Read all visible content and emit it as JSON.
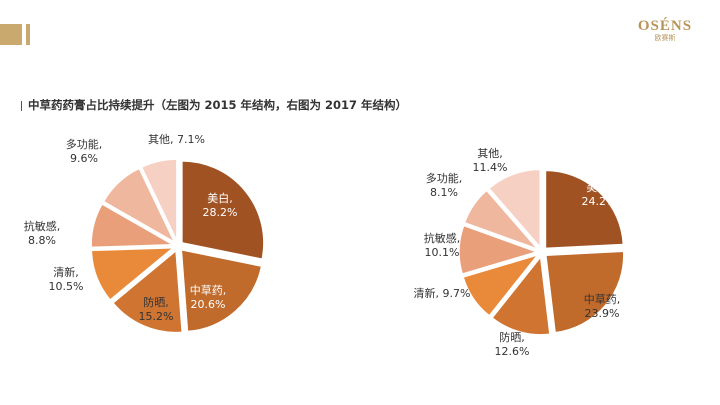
{
  "header": {
    "brand_colors": [
      "#c9a96e",
      "#b8955a"
    ],
    "logo_text": "OSÉNS",
    "logo_subtext": "欧赛斯"
  },
  "title": "中草药药膏占比持续提升（左图为 2015 年结构，右图为 2017 年结构）",
  "chart_data": [
    {
      "type": "pie",
      "title": "",
      "slices": [
        {
          "name": "美白",
          "value": 28.2,
          "label": "美白,",
          "value_label": "28.2%",
          "color": "#a05222",
          "text_color": "#ffffff"
        },
        {
          "name": "中草药",
          "value": 20.6,
          "label": "中草药,",
          "value_label": "20.6%",
          "color": "#c06a2c",
          "text_color": "#ffffff"
        },
        {
          "name": "防晒",
          "value": 15.2,
          "label": "防晒,",
          "value_label": "15.2%",
          "color": "#cf7431",
          "text_color": "#333333"
        },
        {
          "name": "清新",
          "value": 10.5,
          "label": "清新,",
          "value_label": "10.5%",
          "color": "#e98a3b",
          "text_color": "#333333"
        },
        {
          "name": "抗敏感",
          "value": 8.8,
          "label": "抗敏感,",
          "value_label": "8.8%",
          "color": "#e9a07a",
          "text_color": "#333333"
        },
        {
          "name": "多功能",
          "value": 9.6,
          "label": "多功能,",
          "value_label": "9.6%",
          "color": "#efb79d",
          "text_color": "#333333"
        },
        {
          "name": "其他",
          "value": 7.1,
          "label": "其他,",
          "value_label": "7.1%",
          "color": "#f7d0c4",
          "text_color": "#333333"
        }
      ]
    },
    {
      "type": "pie",
      "title": "",
      "slices": [
        {
          "name": "美白",
          "value": 24.2,
          "label": "美白,",
          "value_label": "24.2%",
          "color": "#a05222",
          "text_color": "#ffffff"
        },
        {
          "name": "中草药",
          "value": 23.9,
          "label": "中草药,",
          "value_label": "23.9%",
          "color": "#c06a2c",
          "text_color": "#333333"
        },
        {
          "name": "防晒",
          "value": 12.6,
          "label": "防晒,",
          "value_label": "12.6%",
          "color": "#cf7431",
          "text_color": "#333333"
        },
        {
          "name": "清新",
          "value": 9.7,
          "label": "清新,",
          "value_label": "9.7%",
          "color": "#e98a3b",
          "text_color": "#333333"
        },
        {
          "name": "抗敏感",
          "value": 10.1,
          "label": "抗敏感,",
          "value_label": "10.1%",
          "color": "#e9a07a",
          "text_color": "#333333"
        },
        {
          "name": "多功能",
          "value": 8.1,
          "label": "多功能,",
          "value_label": "8.1%",
          "color": "#efb79d",
          "text_color": "#333333"
        },
        {
          "name": "其他",
          "value": 11.4,
          "label": "其他,",
          "value_label": "11.4%",
          "color": "#f7d0c4",
          "text_color": "#333333"
        }
      ]
    }
  ]
}
